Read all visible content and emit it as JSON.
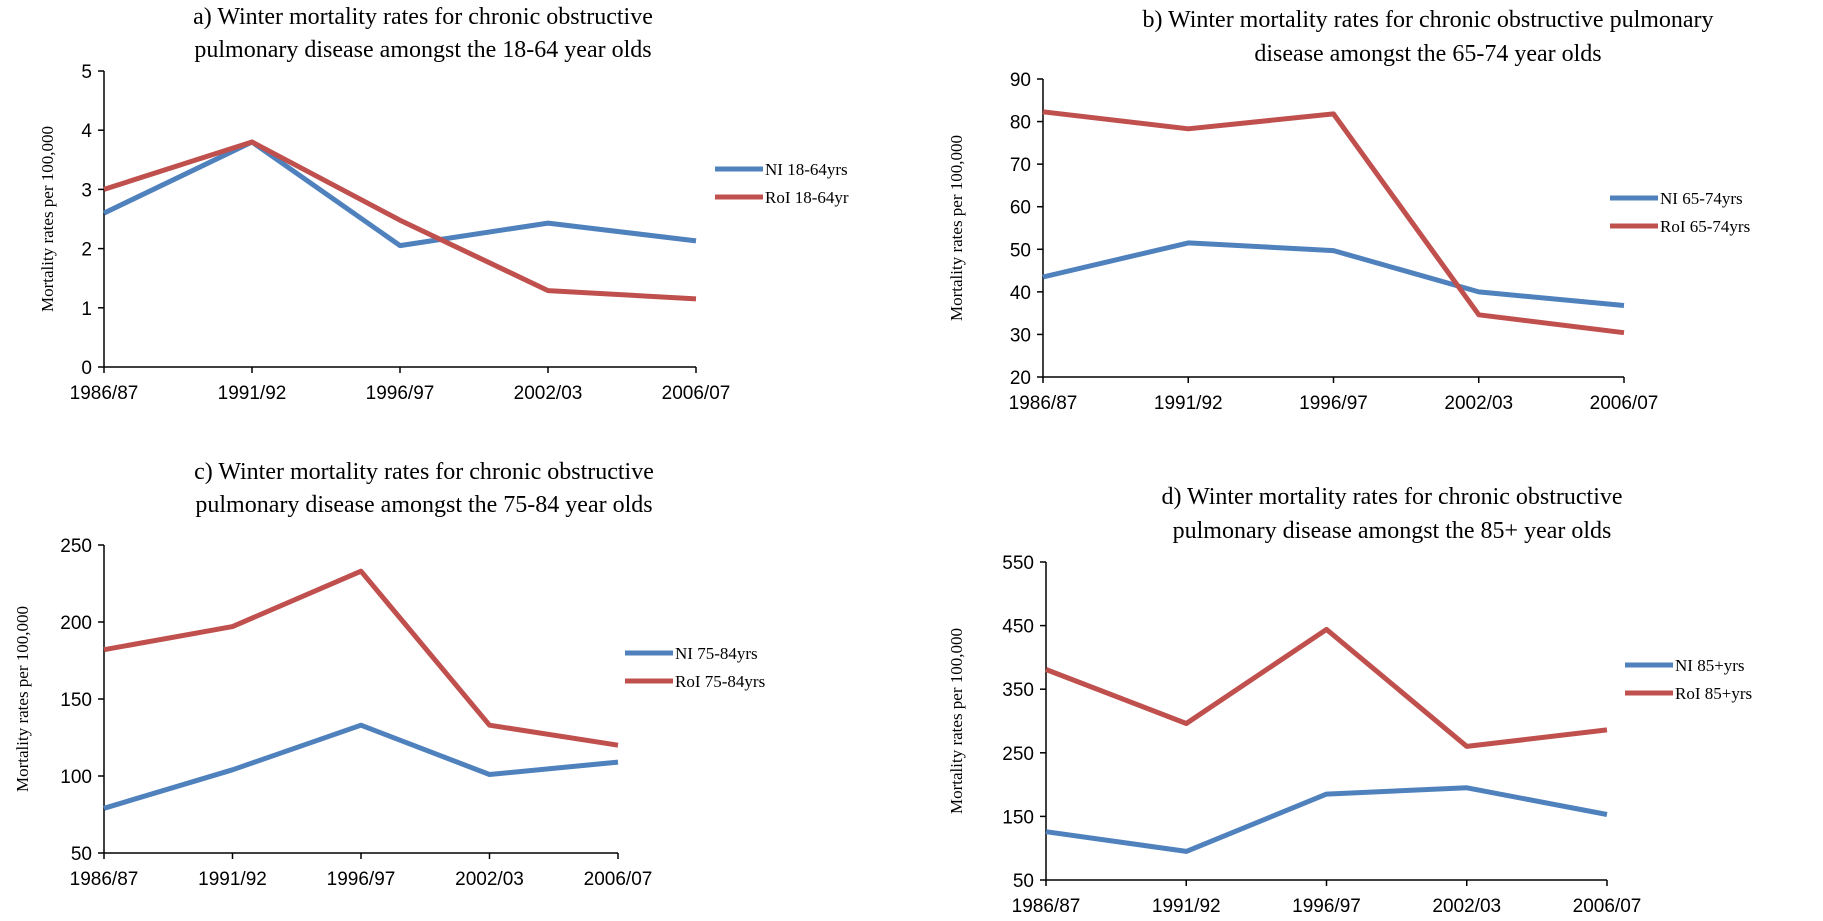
{
  "chart_data": [
    {
      "type": "line",
      "title": [
        "a) Winter mortality rates for chronic obstructive",
        "pulmonary disease amongst the 18-64 year olds"
      ],
      "ylabel": "Mortality rates per 100,000",
      "categories": [
        "1986/87",
        "1991/92",
        "1996/97",
        "2002/03",
        "2006/07"
      ],
      "ylim": [
        0,
        5
      ],
      "yticks": [
        0,
        1,
        2,
        3,
        4,
        5
      ],
      "grid": false,
      "legend_position": "right",
      "series": [
        {
          "name": "NI 18-64yrs",
          "color": "#4f81bd",
          "values": [
            2.6,
            3.8,
            2.05,
            2.43,
            2.13
          ]
        },
        {
          "name": "RoI 18-64yr",
          "color": "#c0504d",
          "values": [
            3.0,
            3.8,
            2.48,
            1.29,
            1.15
          ]
        }
      ]
    },
    {
      "type": "line",
      "title": [
        "b) Winter mortality rates for chronic obstructive pulmonary",
        "disease amongst the 65-74 year olds"
      ],
      "ylabel": "Mortality rates per 100,000",
      "categories": [
        "1986/87",
        "1991/92",
        "1996/97",
        "2002/03",
        "2006/07"
      ],
      "ylim": [
        20,
        90
      ],
      "yticks": [
        20,
        30,
        40,
        50,
        60,
        70,
        80,
        90
      ],
      "grid": false,
      "legend_position": "right",
      "series": [
        {
          "name": "NI 65-74yrs",
          "color": "#4f81bd",
          "values": [
            43.5,
            51.5,
            49.7,
            40.0,
            36.8
          ]
        },
        {
          "name": "RoI 65-74yrs",
          "color": "#c0504d",
          "values": [
            82.3,
            78.3,
            81.8,
            34.6,
            30.4
          ]
        }
      ]
    },
    {
      "type": "line",
      "title": [
        "c) Winter mortality rates for chronic obstructive",
        "pulmonary disease amongst the 75-84 year olds"
      ],
      "ylabel": "Mortality rates per 100,000",
      "categories": [
        "1986/87",
        "1991/92",
        "1996/97",
        "2002/03",
        "2006/07"
      ],
      "ylim": [
        50,
        250
      ],
      "yticks": [
        50,
        100,
        150,
        200,
        250
      ],
      "grid": false,
      "legend_position": "right",
      "series": [
        {
          "name": "NI 75-84yrs",
          "color": "#4f81bd",
          "values": [
            79,
            104,
            133,
            101,
            109
          ]
        },
        {
          "name": "RoI 75-84yrs",
          "color": "#c0504d",
          "values": [
            182,
            197,
            233,
            133,
            120
          ]
        }
      ]
    },
    {
      "type": "line",
      "title": [
        "d) Winter mortality rates for chronic obstructive",
        "pulmonary disease amongst the 85+ year olds"
      ],
      "ylabel": "Mortality rates per 100,000",
      "categories": [
        "1986/87",
        "1991/92",
        "1996/97",
        "2002/03",
        "2006/07"
      ],
      "ylim": [
        50,
        550
      ],
      "yticks": [
        50,
        150,
        250,
        350,
        450,
        550
      ],
      "grid": false,
      "legend_position": "right",
      "series": [
        {
          "name": "NI 85+yrs",
          "color": "#4f81bd",
          "values": [
            126,
            95,
            185,
            195,
            153
          ]
        },
        {
          "name": "RoI 85+yrs",
          "color": "#c0504d",
          "values": [
            381,
            296,
            444,
            260,
            286
          ]
        }
      ]
    }
  ]
}
